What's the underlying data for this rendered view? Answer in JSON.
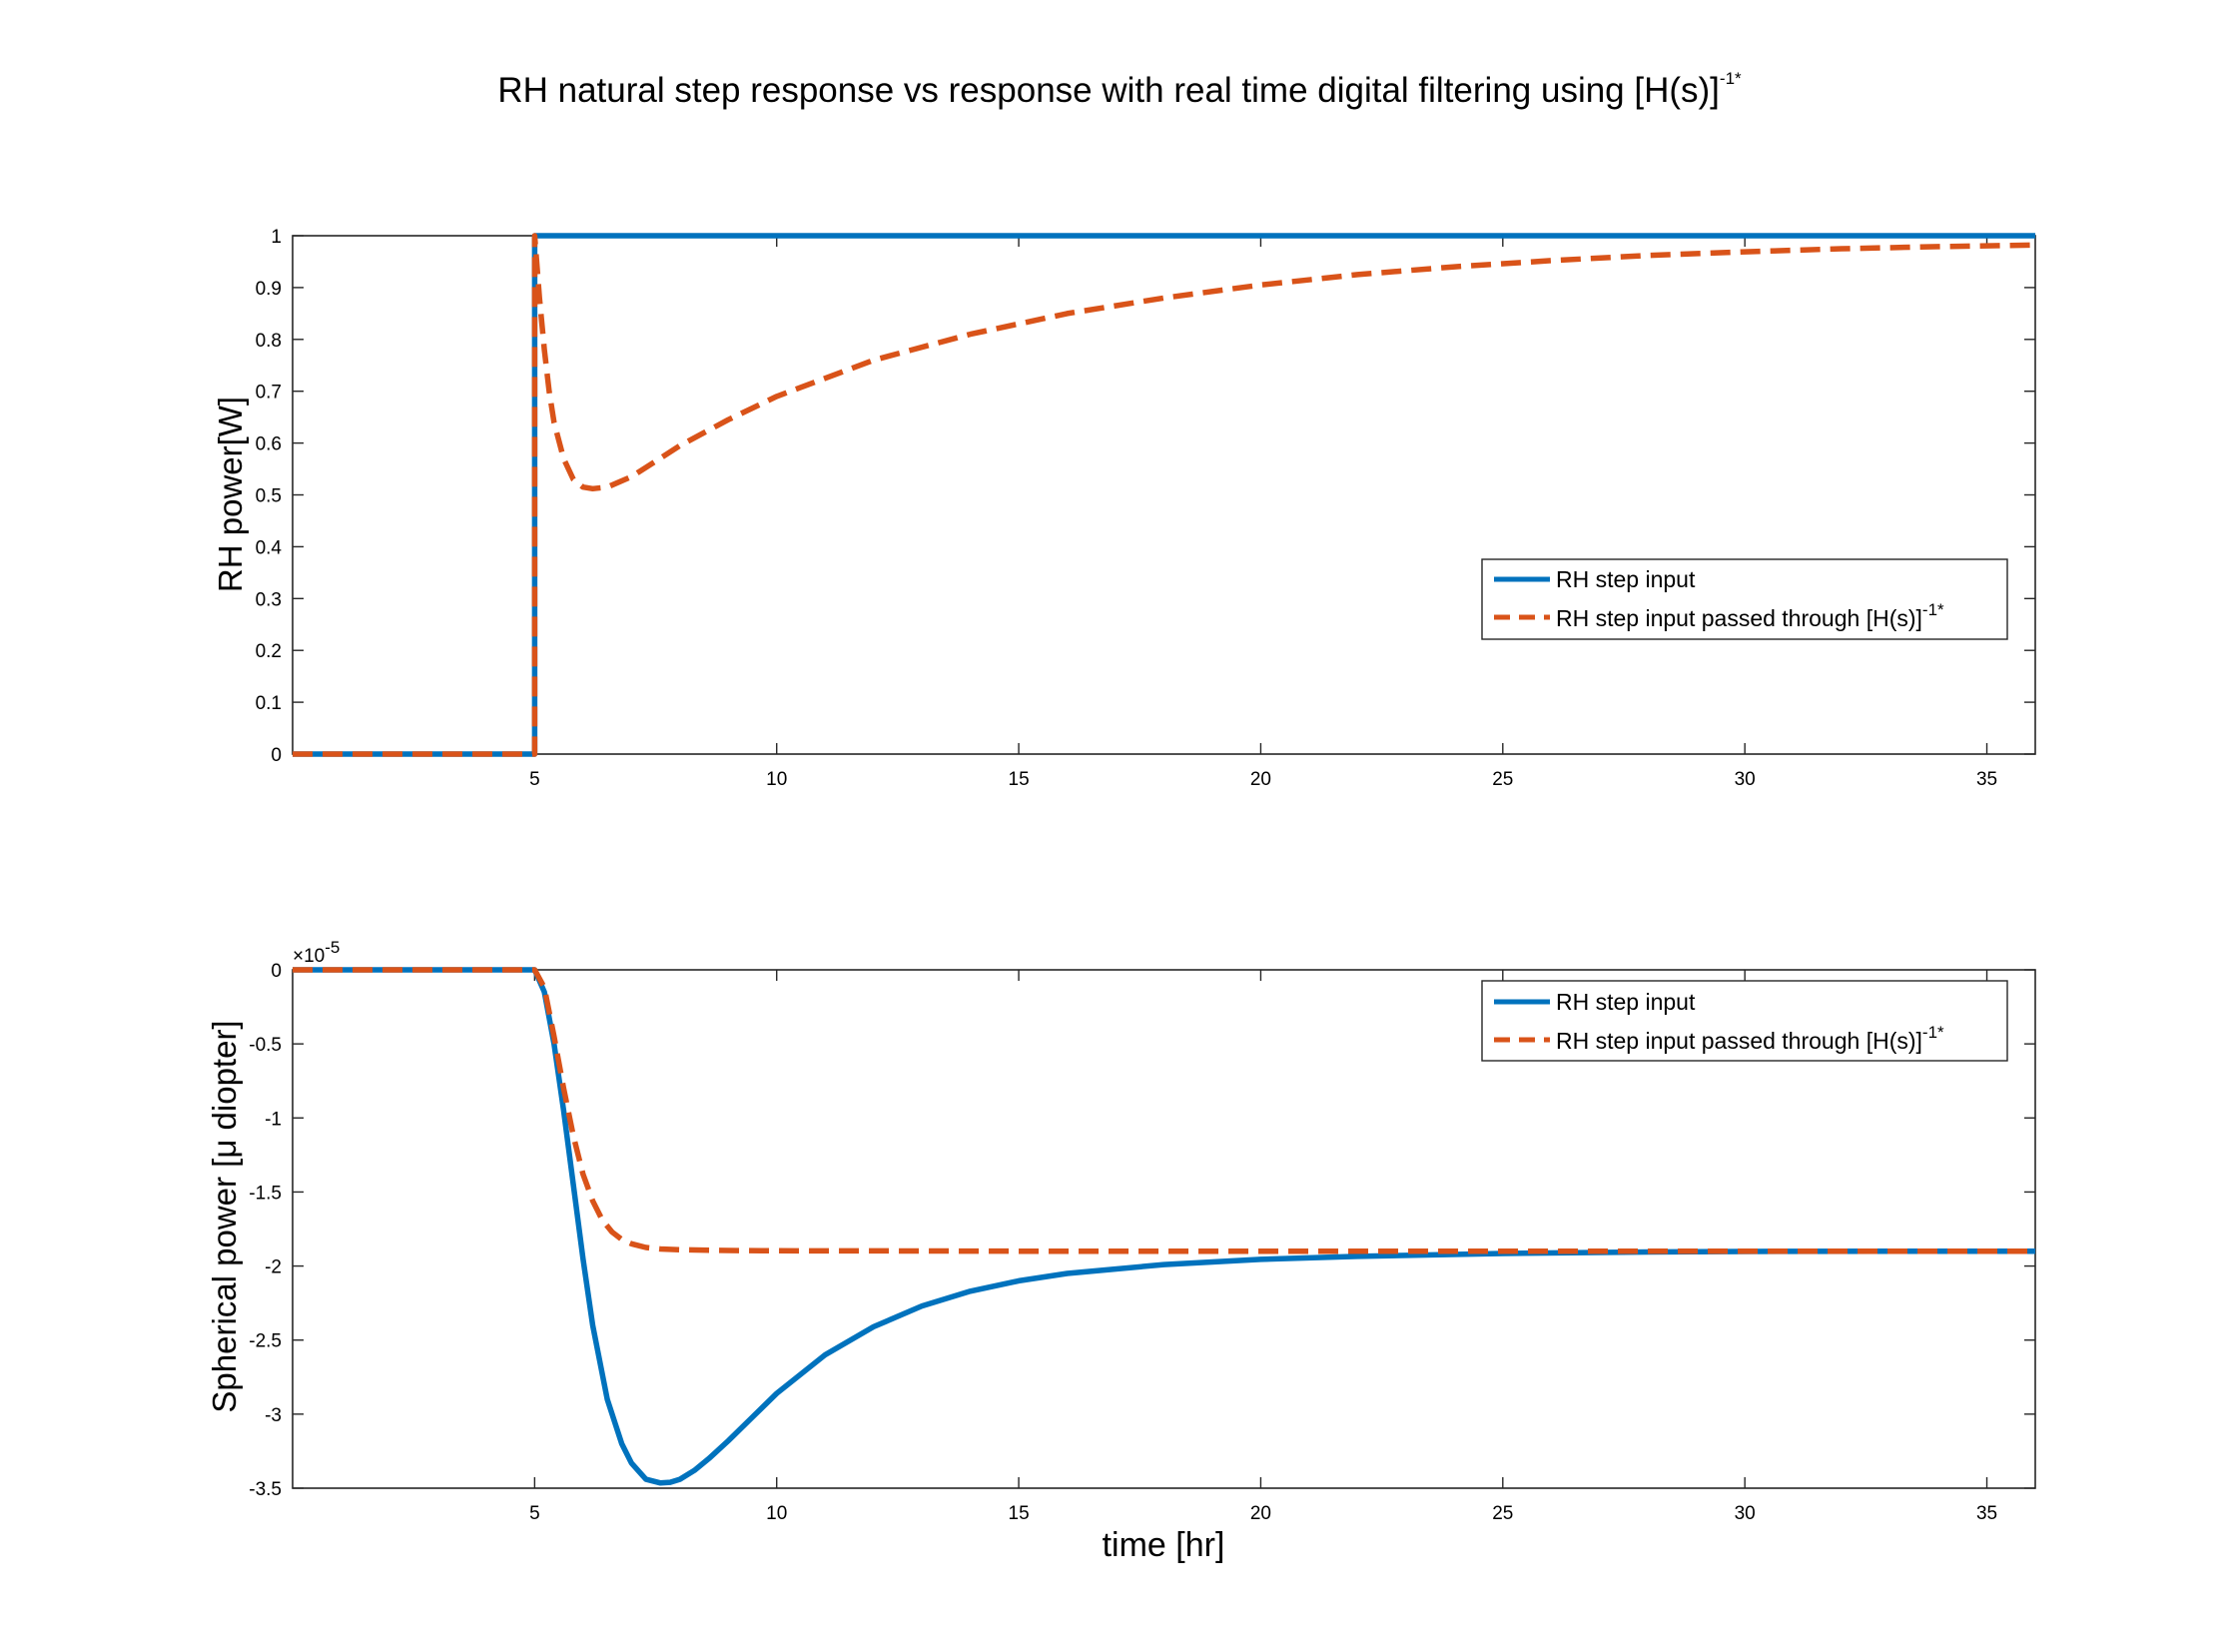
{
  "figure": {
    "title_main": "RH natural step response vs response with real time digital filtering using [H(s)]",
    "title_sup": "-1*"
  },
  "colors": {
    "blue": "#0072BD",
    "orange": "#D95319"
  },
  "chart_data": [
    {
      "type": "line",
      "panel": "top",
      "xlabel": "",
      "ylabel": "RH power[W]",
      "xlim": [
        0,
        36
      ],
      "ylim": [
        0,
        1
      ],
      "xticks": [
        5,
        10,
        15,
        20,
        25,
        30,
        35
      ],
      "yticks": [
        0,
        0.1,
        0.2,
        0.3,
        0.4,
        0.5,
        0.6,
        0.7,
        0.8,
        0.9,
        1
      ],
      "ytick_labels": [
        "0",
        "0.1",
        "0.2",
        "0.3",
        "0.4",
        "0.5",
        "0.6",
        "0.7",
        "0.8",
        "0.9",
        "1"
      ],
      "legend_position": "right",
      "legend_entries": [
        {
          "label": "RH step input",
          "sup": ""
        },
        {
          "label": "RH step input passed through [H(s)]",
          "sup": "-1*"
        }
      ],
      "series": [
        {
          "name": "RH step input",
          "color": "#0072BD",
          "style": "solid",
          "x": [
            0,
            5,
            5,
            36
          ],
          "y": [
            0,
            0,
            1,
            1
          ]
        },
        {
          "name": "RH step input passed through [H(s)]-1*",
          "color": "#D95319",
          "style": "dashed",
          "x": [
            0,
            5,
            5,
            5.1,
            5.2,
            5.3,
            5.4,
            5.6,
            5.8,
            6.0,
            6.2,
            6.5,
            7.0,
            7.5,
            8,
            9,
            10,
            12,
            14,
            16,
            18,
            20,
            22,
            24,
            26,
            28,
            30,
            32,
            34,
            36
          ],
          "y": [
            0,
            0,
            1.0,
            0.88,
            0.78,
            0.7,
            0.64,
            0.57,
            0.53,
            0.515,
            0.512,
            0.515,
            0.535,
            0.565,
            0.595,
            0.645,
            0.69,
            0.76,
            0.81,
            0.85,
            0.88,
            0.905,
            0.925,
            0.94,
            0.952,
            0.962,
            0.969,
            0.975,
            0.979,
            0.982
          ]
        }
      ]
    },
    {
      "type": "line",
      "panel": "bottom",
      "xlabel": "time [hr]",
      "ylabel": "Spherical power [μ diopter]",
      "exponent_label": "×10",
      "exponent_sup": "-5",
      "xlim": [
        0,
        36
      ],
      "ylim": [
        -3.5,
        0
      ],
      "xticks": [
        5,
        10,
        15,
        20,
        25,
        30,
        35
      ],
      "yticks": [
        -3.5,
        -3,
        -2.5,
        -2,
        -1.5,
        -1,
        -0.5,
        0
      ],
      "ytick_labels": [
        "-3.5",
        "-3",
        "-2.5",
        "-2",
        "-1.5",
        "-1",
        "-0.5",
        "0"
      ],
      "legend_position": "top-right",
      "legend_entries": [
        {
          "label": "RH step input",
          "sup": ""
        },
        {
          "label": "RH step input passed through [H(s)]",
          "sup": "-1*"
        }
      ],
      "series": [
        {
          "name": "RH step input",
          "color": "#0072BD",
          "style": "solid",
          "x": [
            0,
            5,
            5.2,
            5.4,
            5.6,
            5.8,
            6.0,
            6.2,
            6.5,
            6.8,
            7.0,
            7.3,
            7.6,
            7.8,
            8.0,
            8.3,
            8.6,
            9.0,
            9.5,
            10,
            11,
            12,
            13,
            14,
            15,
            16,
            18,
            20,
            22,
            25,
            28,
            30,
            33,
            36
          ],
          "y": [
            0,
            0,
            -0.15,
            -0.5,
            -0.95,
            -1.45,
            -1.95,
            -2.4,
            -2.9,
            -3.2,
            -3.33,
            -3.44,
            -3.465,
            -3.46,
            -3.44,
            -3.38,
            -3.3,
            -3.18,
            -3.02,
            -2.86,
            -2.6,
            -2.41,
            -2.27,
            -2.17,
            -2.1,
            -2.05,
            -1.99,
            -1.955,
            -1.935,
            -1.915,
            -1.905,
            -1.902,
            -1.9,
            -1.9
          ]
        },
        {
          "name": "RH step input passed through [H(s)]-1*",
          "color": "#D95319",
          "style": "dashed",
          "x": [
            0,
            5,
            5.2,
            5.4,
            5.6,
            5.8,
            6.0,
            6.2,
            6.4,
            6.6,
            6.8,
            7.0,
            7.3,
            7.6,
            8.0,
            9,
            10,
            12,
            15,
            20,
            25,
            30,
            36
          ],
          "y": [
            0,
            0,
            -0.12,
            -0.45,
            -0.8,
            -1.12,
            -1.38,
            -1.56,
            -1.69,
            -1.77,
            -1.82,
            -1.85,
            -1.875,
            -1.885,
            -1.89,
            -1.895,
            -1.897,
            -1.898,
            -1.9,
            -1.9,
            -1.9,
            -1.9,
            -1.9
          ]
        }
      ]
    }
  ]
}
